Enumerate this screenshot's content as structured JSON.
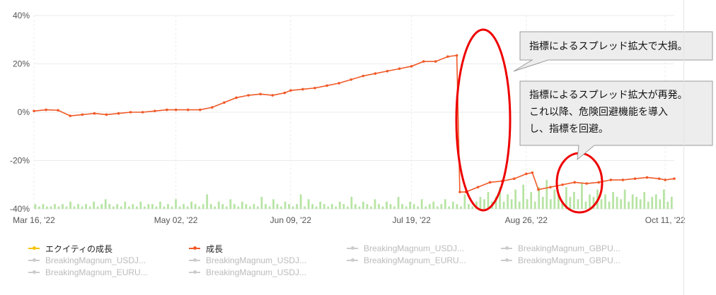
{
  "chart_data": {
    "type": "line",
    "y_ticks": [
      "40%",
      "20%",
      "0%",
      "-20%",
      "-40%"
    ],
    "ylim": [
      -40,
      40
    ],
    "x_ticks": [
      "Mar 16, '22",
      "May 02, '22",
      "Jun 09, '22",
      "Jul 19, '22",
      "Aug 26, '22",
      "Oct 11, '22"
    ],
    "series": [
      {
        "name": "成長",
        "color": "#f05a28",
        "x": [
          "2022-03-16",
          "2022-03-20",
          "2022-03-24",
          "2022-03-28",
          "2022-04-01",
          "2022-04-05",
          "2022-04-09",
          "2022-04-13",
          "2022-04-17",
          "2022-04-21",
          "2022-04-25",
          "2022-04-29",
          "2022-05-02",
          "2022-05-06",
          "2022-05-10",
          "2022-05-14",
          "2022-05-18",
          "2022-05-22",
          "2022-05-26",
          "2022-05-30",
          "2022-06-03",
          "2022-06-07",
          "2022-06-09",
          "2022-06-13",
          "2022-06-17",
          "2022-06-21",
          "2022-06-25",
          "2022-06-29",
          "2022-07-03",
          "2022-07-07",
          "2022-07-11",
          "2022-07-15",
          "2022-07-19",
          "2022-07-23",
          "2022-07-27",
          "2022-07-31",
          "2022-08-03",
          "2022-08-04",
          "2022-08-06",
          "2022-08-10",
          "2022-08-14",
          "2022-08-18",
          "2022-08-22",
          "2022-08-26",
          "2022-08-28",
          "2022-08-30",
          "2022-09-03",
          "2022-09-07",
          "2022-09-11",
          "2022-09-15",
          "2022-09-19",
          "2022-09-23",
          "2022-09-27",
          "2022-10-01",
          "2022-10-05",
          "2022-10-09",
          "2022-10-11",
          "2022-10-14"
        ],
        "values": [
          0.5,
          1,
          0.8,
          -1.5,
          -1,
          -0.5,
          -1,
          -0.5,
          0,
          0,
          0.5,
          1,
          1,
          1,
          1,
          2,
          4,
          6,
          7,
          7.5,
          7,
          8,
          9,
          9.5,
          10,
          11,
          12,
          13.5,
          15,
          16,
          17,
          18,
          19,
          21,
          21,
          23,
          23.5,
          -33,
          -33,
          -31,
          -29,
          -28.5,
          -27.5,
          -25.5,
          -25,
          -32,
          -31,
          -30,
          -29,
          -29.5,
          -29,
          -28,
          -28,
          -27.5,
          -27,
          -27.5,
          -28,
          -27.5
        ]
      },
      {
        "name": "エクイティの成長",
        "color": "#f5c400"
      }
    ],
    "bars": {
      "color": "#b7e4a4",
      "values": [
        2,
        1,
        2,
        1,
        1,
        2,
        1,
        2,
        1,
        3,
        1,
        2,
        1,
        2,
        1,
        3,
        1,
        2,
        4,
        2,
        1,
        2,
        1,
        3,
        1,
        2,
        1,
        3,
        1,
        2,
        2,
        1,
        3,
        1,
        2,
        1,
        4,
        1,
        2,
        1,
        3,
        2,
        1,
        2,
        6,
        2,
        1,
        3,
        2,
        1,
        4,
        2,
        1,
        3,
        2,
        1,
        2,
        1,
        5,
        2,
        1,
        4,
        2,
        1,
        3,
        2,
        1,
        2,
        6,
        1,
        4,
        2,
        1,
        3,
        2,
        1,
        2,
        1,
        3,
        2,
        1,
        5,
        2,
        1,
        3,
        2,
        1,
        4,
        2,
        1,
        3,
        2,
        1,
        5,
        2,
        1,
        3,
        2,
        1,
        4,
        1,
        2,
        3,
        1,
        2,
        4,
        1,
        3,
        2,
        1,
        6,
        2,
        1,
        3,
        5,
        4,
        7,
        3,
        5,
        9,
        3,
        6,
        4,
        8,
        3,
        10,
        4,
        7,
        3,
        9,
        5,
        12,
        4,
        8,
        6,
        3,
        9,
        5,
        7,
        4,
        11,
        3,
        6,
        5,
        8,
        4,
        6,
        3,
        7,
        5,
        4,
        8,
        3,
        6,
        5,
        4,
        7,
        3,
        5,
        6,
        4,
        8,
        3,
        5
      ]
    }
  },
  "callouts": [
    {
      "text": "指標によるスプレッド拡大で大損。"
    },
    {
      "lines": [
        "指標によるスプレッド拡大が再発。",
        "これ以降、危険回避機能を導入",
        "し、指標を回避。"
      ]
    }
  ],
  "legend": [
    {
      "label": "エクイティの成長",
      "color": "#f5c400",
      "active": true
    },
    {
      "label": "成長",
      "color": "#f05a28",
      "active": true
    },
    {
      "label": "BreakingMagnum_USDJ...",
      "color": "#cccccc",
      "active": false
    },
    {
      "label": "BreakingMagnum_GBPU...",
      "color": "#cccccc",
      "active": false
    },
    {
      "label": "BreakingMagnum_USDJ...",
      "color": "#cccccc",
      "active": false
    },
    {
      "label": "BreakingMagnum_USDJ...",
      "color": "#cccccc",
      "active": false
    },
    {
      "label": "BreakingMagnum_EURU...",
      "color": "#cccccc",
      "active": false
    },
    {
      "label": "BreakingMagnum_GBPU...",
      "color": "#cccccc",
      "active": false
    },
    {
      "label": "BreakingMagnum_EURU...",
      "color": "#cccccc",
      "active": false
    },
    {
      "label": "BreakingMagnum_USDJ...",
      "color": "#cccccc",
      "active": false
    }
  ]
}
